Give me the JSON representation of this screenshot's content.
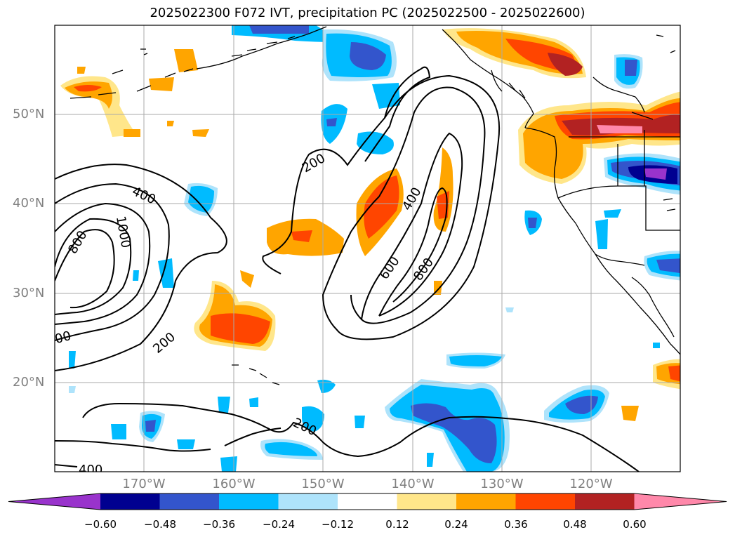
{
  "title": "2025022300 F072 IVT, precipitation PC (2025022500 - 2025022600)",
  "lat_labels": [
    "50°N",
    "40°N",
    "30°N",
    "20°N"
  ],
  "lon_labels": [
    "170°W",
    "160°W",
    "150°W",
    "140°W",
    "130°W",
    "120°W"
  ],
  "contour_labels": [
    "400",
    "1000",
    "800",
    "200",
    "200",
    "400",
    "600",
    "800",
    "200",
    "400",
    "00"
  ],
  "colorbar": {
    "ticks": [
      "−0.60",
      "−0.48",
      "−0.36",
      "−0.24",
      "−0.12",
      "0.12",
      "0.24",
      "0.36",
      "0.48",
      "0.60"
    ],
    "colors": [
      "#9933cc",
      "#000090",
      "#3355cc",
      "#00bbff",
      "#aee3fb",
      "#ffffff",
      "#ffe68a",
      "#ffa500",
      "#ff4500",
      "#b22222",
      "#ff88aa"
    ]
  }
}
